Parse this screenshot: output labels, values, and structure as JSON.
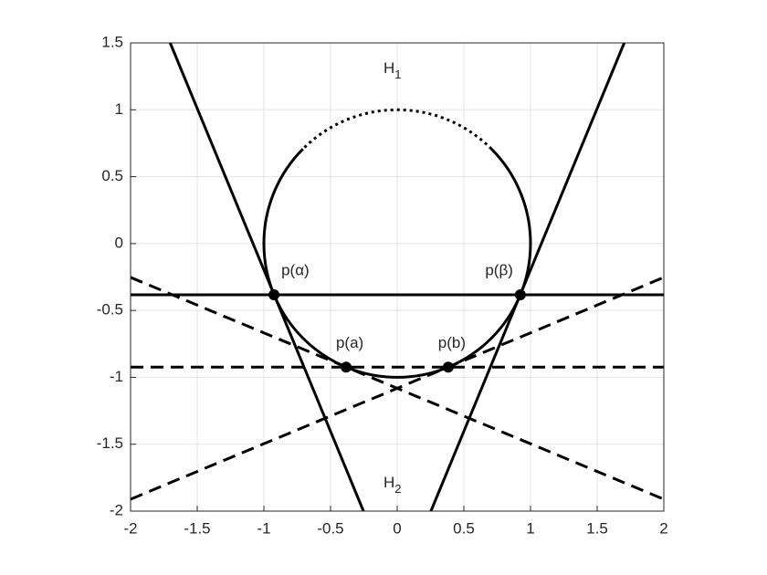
{
  "chart_data": {
    "type": "line",
    "xlim": [
      -2,
      2
    ],
    "ylim": [
      -2,
      1.5
    ],
    "xticks": [
      -2,
      -1.5,
      -1,
      -0.5,
      0,
      0.5,
      1,
      1.5,
      2
    ],
    "yticks": [
      -2,
      -1.5,
      -1,
      -0.5,
      0,
      0.5,
      1,
      1.5
    ],
    "grid": true,
    "color": "#000000",
    "circle": {
      "center": [
        0,
        0
      ],
      "radius": 1,
      "dotted_from_deg": 45,
      "dotted_to_deg": 135
    },
    "series": [
      {
        "style": "solid",
        "x": [
          -2,
          2
        ],
        "y": [
          -0.383,
          -0.383
        ]
      },
      {
        "style": "dashed",
        "x": [
          -2,
          2
        ],
        "y": [
          -0.924,
          -0.924
        ]
      },
      {
        "style": "solid",
        "x": [
          -1.703,
          -0.253
        ],
        "y": [
          1.5,
          -2
        ]
      },
      {
        "style": "solid",
        "x": [
          1.703,
          0.253
        ],
        "y": [
          1.5,
          -2
        ]
      },
      {
        "style": "dashed",
        "x": [
          -2,
          2
        ],
        "y": [
          -0.253,
          -1.911
        ]
      },
      {
        "style": "dashed",
        "x": [
          -2,
          2
        ],
        "y": [
          -1.911,
          -0.253
        ]
      }
    ],
    "points": {
      "x": [
        -0.924,
        0.924,
        -0.383,
        0.383
      ],
      "y": [
        -0.383,
        -0.383,
        -0.924,
        -0.924
      ],
      "labels": [
        "p(α)",
        "p(β)",
        "p(a)",
        "p(b)"
      ]
    },
    "annotations": [
      {
        "text": "H",
        "sub": "1"
      },
      {
        "text": "H",
        "sub": "2"
      }
    ]
  }
}
